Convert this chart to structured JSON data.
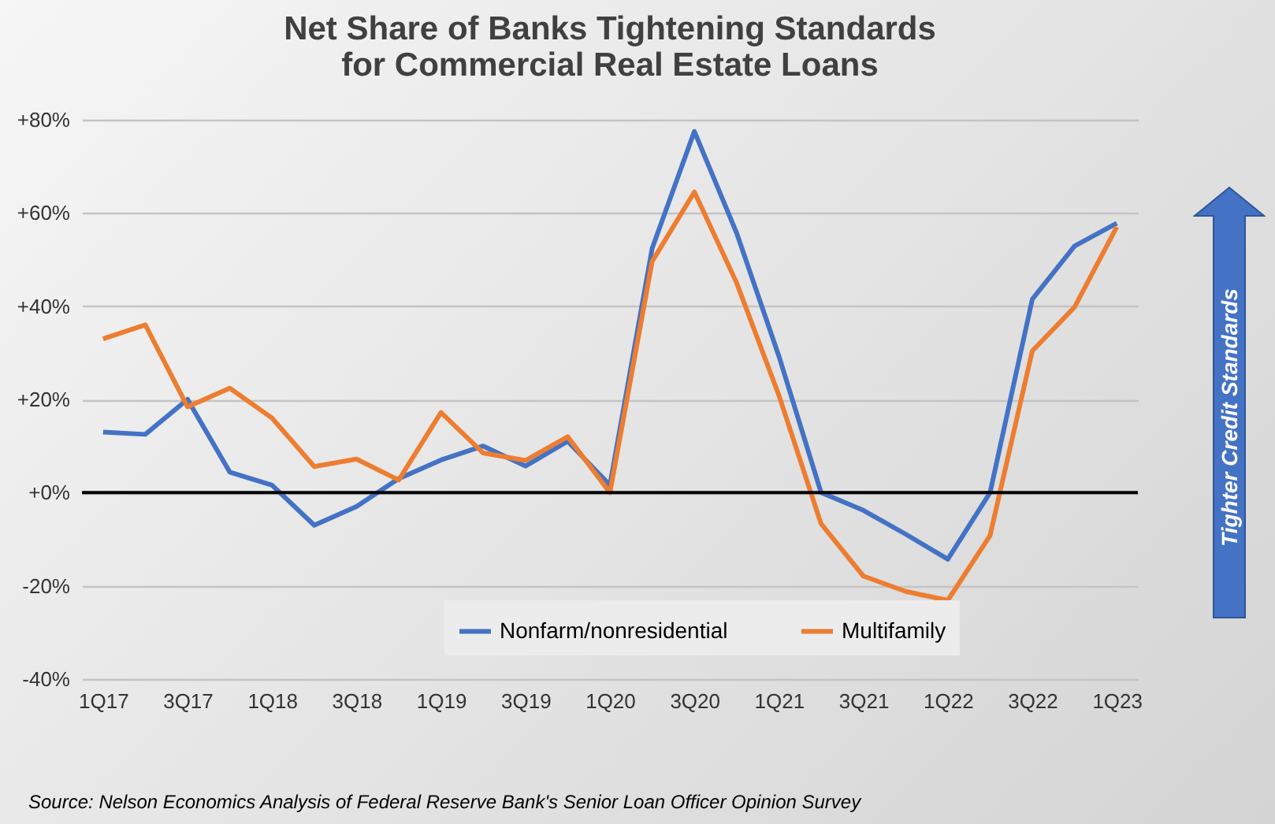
{
  "chart_data": {
    "type": "line",
    "title": "Net Share of Banks Tightening Standards\nfor Commercial Real Estate Loans",
    "categories": [
      "1Q17",
      null,
      "3Q17",
      null,
      "1Q18",
      null,
      "3Q18",
      null,
      "1Q19",
      null,
      "3Q19",
      null,
      "1Q20",
      null,
      "3Q20",
      null,
      "1Q21",
      null,
      "3Q21",
      null,
      "1Q22",
      null,
      "3Q22",
      null,
      "1Q23"
    ],
    "series": [
      {
        "name": "Nonfarm/nonresidential",
        "color": "#4472c4",
        "values": [
          13,
          12.5,
          20,
          4.4,
          1.6,
          -7,
          -3,
          3,
          7,
          10,
          5.7,
          11,
          1.6,
          52.4,
          77.5,
          55.7,
          29.3,
          0,
          -3.8,
          -8.9,
          -14.3,
          0,
          41.5,
          52.9,
          57.8
        ]
      },
      {
        "name": "Multifamily",
        "color": "#ed7d31",
        "values": [
          33,
          36,
          18.4,
          22.4,
          16,
          5.6,
          7.2,
          2.7,
          17.2,
          8.5,
          6.9,
          12,
          0,
          49.6,
          64.5,
          45,
          20.9,
          -6.7,
          -17.9,
          -21.2,
          -23.1,
          -9.2,
          30.4,
          39.8,
          57
        ]
      }
    ],
    "ylim": [
      -40,
      80
    ],
    "yticks": [
      {
        "value": -40,
        "label": "-40%"
      },
      {
        "value": -20,
        "label": "-20%"
      },
      {
        "value": 0,
        "label": "+0%"
      },
      {
        "value": 20,
        "label": "+20%"
      },
      {
        "value": 40,
        "label": "+40%"
      },
      {
        "value": 60,
        "label": "+60%"
      },
      {
        "value": 80,
        "label": "+80%"
      }
    ],
    "grid": "y",
    "legend": "bottom",
    "line_style": "solid",
    "marker": "none",
    "ref_lines": [
      {
        "axis": "y",
        "value": 0,
        "color": "#000000"
      }
    ],
    "annotations": [
      "Tighter Credit Standards",
      "Source: Nelson Economics Analysis of Federal Reserve Bank's Senior Loan Officer Opinion Survey"
    ]
  }
}
